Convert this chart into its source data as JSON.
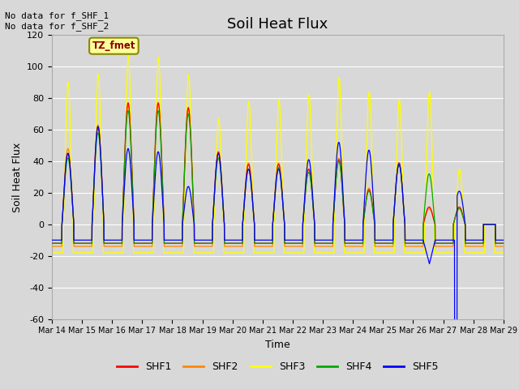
{
  "title": "Soil Heat Flux",
  "ylabel": "Soil Heat Flux",
  "xlabel": "Time",
  "ylim": [
    -60,
    120
  ],
  "xlim": [
    0,
    360
  ],
  "xtick_labels": [
    "Mar 14",
    "Mar 15",
    "Mar 16",
    "Mar 17",
    "Mar 18",
    "Mar 19",
    "Mar 20",
    "Mar 21",
    "Mar 22",
    "Mar 23",
    "Mar 24",
    "Mar 25",
    "Mar 26",
    "Mar 27",
    "Mar 28",
    "Mar 29"
  ],
  "xtick_positions": [
    0,
    24,
    48,
    72,
    96,
    120,
    144,
    168,
    192,
    216,
    240,
    264,
    288,
    312,
    336,
    360
  ],
  "ytick_labels": [
    "-60",
    "-40",
    "-20",
    "0",
    "20",
    "40",
    "60",
    "80",
    "100",
    "120"
  ],
  "ytick_values": [
    -60,
    -40,
    -20,
    0,
    20,
    40,
    60,
    80,
    100,
    120
  ],
  "legend_entries": [
    "SHF1",
    "SHF2",
    "SHF3",
    "SHF4",
    "SHF5"
  ],
  "legend_colors": [
    "#ff0000",
    "#ff8800",
    "#ffff00",
    "#00aa00",
    "#0000ff"
  ],
  "annotation_text": "No data for f_SHF_1\nNo data for f_SHF_2",
  "tz_label": "TZ_fmet",
  "background_color": "#d8d8d8",
  "axes_facecolor": "#d8d8d8",
  "grid_color": "#ffffff",
  "title_fontsize": 13,
  "axis_label_fontsize": 9,
  "night_val": -10,
  "shf3_peaks": [
    90,
    95,
    107,
    106,
    95,
    67,
    78,
    79,
    82,
    93,
    84,
    79,
    84,
    35,
    0
  ],
  "shf1_peaks": [
    45,
    62,
    77,
    77,
    74,
    46,
    38,
    38,
    35,
    41,
    22,
    39,
    11,
    11,
    0
  ],
  "shf2_peaks": [
    48,
    63,
    76,
    77,
    73,
    45,
    39,
    39,
    35,
    42,
    23,
    39,
    10,
    10,
    0
  ],
  "shf4_peaks": [
    42,
    58,
    72,
    72,
    70,
    42,
    35,
    36,
    33,
    40,
    21,
    38,
    32,
    10,
    0
  ],
  "shf5_peaks": [
    45,
    62,
    48,
    46,
    24,
    45,
    35,
    35,
    41,
    52,
    47,
    38,
    0,
    21,
    0
  ],
  "peak_start": 8.5,
  "peak_end": 17.5,
  "night_shf1": -12,
  "night_shf2": -14,
  "night_shf3": -18,
  "night_shf4": -12,
  "night_shf5": -10
}
